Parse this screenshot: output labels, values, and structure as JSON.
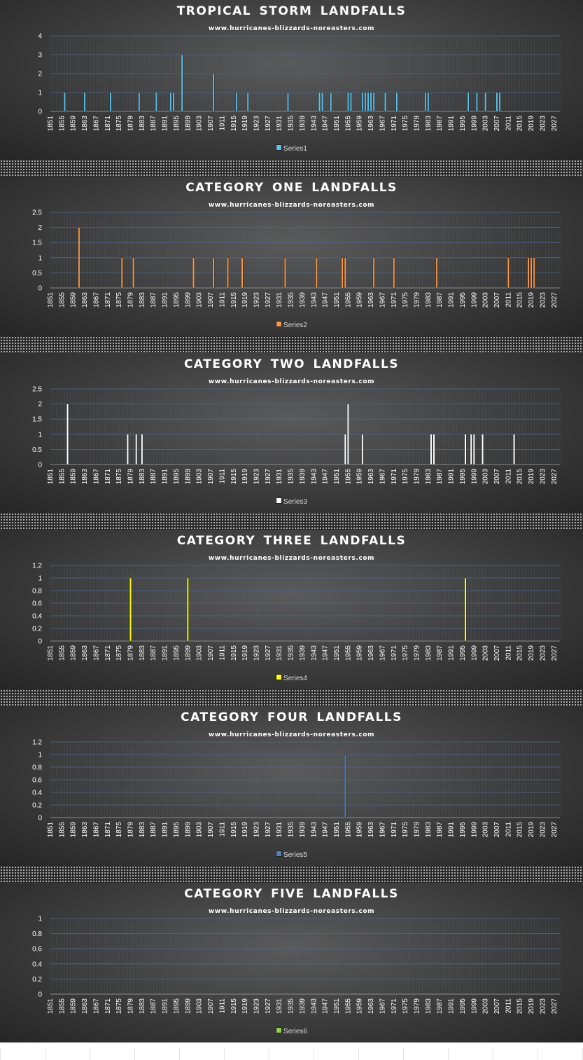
{
  "subtitle": "www.hurricanes-blizzards-noreasters.com",
  "x_tick_labels": [
    "1851",
    "1855",
    "1859",
    "1863",
    "1867",
    "1871",
    "1875",
    "1879",
    "1883",
    "1887",
    "1891",
    "1895",
    "1899",
    "1903",
    "1907",
    "1911",
    "1915",
    "1919",
    "1923",
    "1927",
    "1931",
    "1935",
    "1939",
    "1943",
    "1947",
    "1951",
    "1955",
    "1959",
    "1963",
    "1967",
    "1971",
    "1975",
    "1979",
    "1983",
    "1987",
    "1991",
    "1995",
    "1999",
    "2003",
    "2007",
    "2011",
    "2015",
    "2019",
    "2023",
    "2027"
  ],
  "chart_data": [
    {
      "type": "bar",
      "title": "TROPICAL STORM  LANDFALLS",
      "series": [
        {
          "name": "Series1",
          "color": "#5bc0eb",
          "points": [
            [
              1856,
              1
            ],
            [
              1863,
              1
            ],
            [
              1872,
              1
            ],
            [
              1882,
              1
            ],
            [
              1888,
              1
            ],
            [
              1893,
              1
            ],
            [
              1894,
              1
            ],
            [
              1897,
              3
            ],
            [
              1908,
              2
            ],
            [
              1916,
              1
            ],
            [
              1920,
              1
            ],
            [
              1934,
              1
            ],
            [
              1945,
              1
            ],
            [
              1946,
              1
            ],
            [
              1949,
              1
            ],
            [
              1955,
              1
            ],
            [
              1956,
              1
            ],
            [
              1960,
              1
            ],
            [
              1961,
              1
            ],
            [
              1962,
              1
            ],
            [
              1963,
              1
            ],
            [
              1964,
              1
            ],
            [
              1968,
              1
            ],
            [
              1972,
              1
            ],
            [
              1982,
              1
            ],
            [
              1983,
              1
            ],
            [
              1997,
              1
            ],
            [
              2000,
              1
            ],
            [
              2003,
              1
            ],
            [
              2007,
              1
            ],
            [
              2008,
              1
            ]
          ]
        }
      ],
      "ylim": [
        0,
        4
      ],
      "yticks": [
        "0",
        "1",
        "2",
        "3",
        "4"
      ],
      "grid": true,
      "legend": "bottom"
    },
    {
      "type": "bar",
      "title": "CATEGORY  ONE  LANDFALLS",
      "series": [
        {
          "name": "Series2",
          "color": "#f79646",
          "points": [
            [
              1861,
              2
            ],
            [
              1876,
              1
            ],
            [
              1880,
              1
            ],
            [
              1901,
              1
            ],
            [
              1908,
              1
            ],
            [
              1913,
              1
            ],
            [
              1918,
              1
            ],
            [
              1933,
              1
            ],
            [
              1944,
              1
            ],
            [
              1953,
              1
            ],
            [
              1954,
              1
            ],
            [
              1964,
              1
            ],
            [
              1971,
              1
            ],
            [
              1986,
              1
            ],
            [
              2011,
              1
            ],
            [
              2018,
              1
            ],
            [
              2019,
              1
            ],
            [
              2020,
              1
            ]
          ]
        }
      ],
      "ylim": [
        0,
        2.5
      ],
      "yticks": [
        "0",
        "0.5",
        "1",
        "1.5",
        "2",
        "2.5"
      ],
      "grid": true,
      "legend": "bottom"
    },
    {
      "type": "bar",
      "title": "CATEGORY  TWO  LANDFALLS",
      "series": [
        {
          "name": "Series3",
          "color": "#ffffff",
          "points": [
            [
              1857,
              2
            ],
            [
              1878,
              1
            ],
            [
              1881,
              1
            ],
            [
              1883,
              1
            ],
            [
              1954,
              1
            ],
            [
              1955,
              2
            ],
            [
              1960,
              1
            ],
            [
              1984,
              1
            ],
            [
              1985,
              1
            ],
            [
              1996,
              1
            ],
            [
              1998,
              1
            ],
            [
              1999,
              1
            ],
            [
              2002,
              1
            ],
            [
              2013,
              1
            ]
          ]
        }
      ],
      "ylim": [
        0,
        2.5
      ],
      "yticks": [
        "0",
        "0.5",
        "1",
        "1.5",
        "2",
        "2.5"
      ],
      "grid": true,
      "legend": "bottom"
    },
    {
      "type": "bar",
      "title": "CATEGORY  THREE  LANDFALLS",
      "series": [
        {
          "name": "Series4",
          "color": "#ffff00",
          "points": [
            [
              1879,
              1
            ],
            [
              1899,
              1
            ],
            [
              1996,
              1
            ]
          ]
        }
      ],
      "ylim": [
        0,
        1.2
      ],
      "yticks": [
        "0",
        "0.2",
        "0.4",
        "0.6",
        "0.8",
        "1",
        "1.2"
      ],
      "grid": true,
      "legend": "bottom"
    },
    {
      "type": "bar",
      "title": "CATEGORY  FOUR  LANDFALLS",
      "series": [
        {
          "name": "Series5",
          "color": "#4f81bd",
          "points": [
            [
              1954,
              1
            ]
          ]
        }
      ],
      "ylim": [
        0,
        1.2
      ],
      "yticks": [
        "0",
        "0.2",
        "0.4",
        "0.6",
        "0.8",
        "1",
        "1.2"
      ],
      "grid": true,
      "legend": "bottom"
    },
    {
      "type": "bar",
      "title": "CATEGORY  FIVE  LANDFALLS",
      "series": [
        {
          "name": "Series6",
          "color": "#92d050",
          "points": []
        }
      ],
      "ylim": [
        0,
        1
      ],
      "yticks": [
        "0",
        "0.2",
        "0.4",
        "0.6",
        "0.8",
        "1"
      ],
      "grid": true,
      "legend": "bottom"
    }
  ]
}
